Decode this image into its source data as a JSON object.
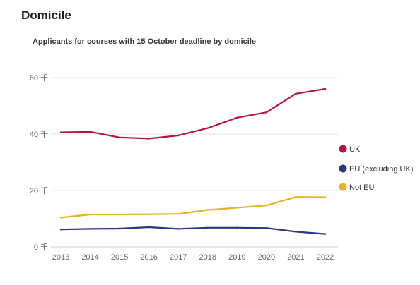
{
  "header": {
    "title": "Domicile"
  },
  "chart_data": {
    "type": "line",
    "title": "Applicants for courses with 15 October deadline by domicile",
    "xlabel": "",
    "ylabel": "",
    "x": [
      "2013",
      "2014",
      "2015",
      "2016",
      "2017",
      "2018",
      "2019",
      "2020",
      "2021",
      "2022"
    ],
    "yticks": [
      {
        "value": 0,
        "label": "0 千"
      },
      {
        "value": 20,
        "label": "20 千"
      },
      {
        "value": 40,
        "label": "40 千"
      },
      {
        "value": 60,
        "label": "60 千"
      }
    ],
    "ylim": [
      0,
      60
    ],
    "grid": true,
    "legend": "right",
    "series": [
      {
        "name": "UK",
        "color": "#b5173c",
        "values": [
          40.6,
          40.8,
          38.8,
          38.4,
          39.5,
          42.1,
          45.8,
          47.7,
          54.3,
          56.0
        ]
      },
      {
        "name": "EU (excluding UK)",
        "color": "#273a7e",
        "values": [
          6.2,
          6.4,
          6.5,
          7.0,
          6.4,
          6.8,
          6.8,
          6.7,
          5.4,
          4.6
        ]
      },
      {
        "name": "Not EU",
        "color": "#e6b321",
        "values": [
          10.4,
          11.5,
          11.5,
          11.6,
          11.7,
          13.1,
          13.9,
          14.7,
          17.7,
          17.6
        ]
      }
    ]
  }
}
